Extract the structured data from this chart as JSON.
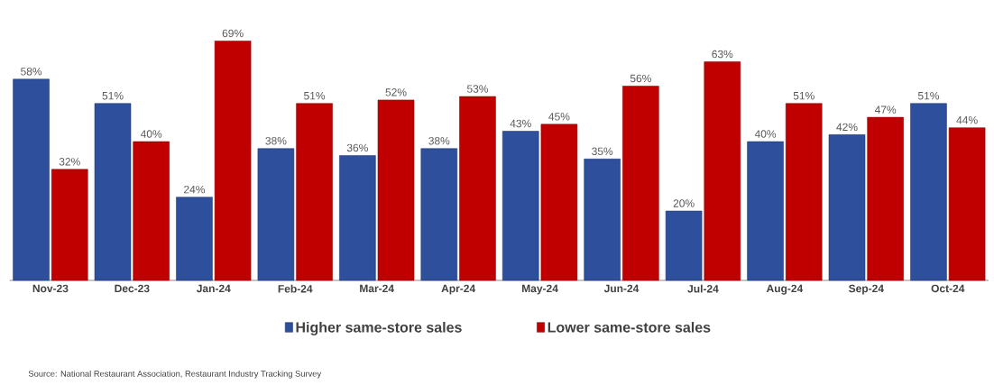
{
  "chart_data": {
    "type": "bar",
    "categories": [
      "Nov-23",
      "Dec-23",
      "Jan-24",
      "Feb-24",
      "Mar-24",
      "Apr-24",
      "May-24",
      "Jun-24",
      "Jul-24",
      "Aug-24",
      "Sep-24",
      "Oct-24"
    ],
    "series": [
      {
        "name": "Higher same-store sales",
        "color": "#2e4f9c",
        "values": [
          58,
          51,
          24,
          38,
          36,
          38,
          43,
          35,
          20,
          40,
          42,
          51
        ],
        "value_labels": [
          "58%",
          "51%",
          "24%",
          "38%",
          "36%",
          "38%",
          "43%",
          "35%",
          "20%",
          "40%",
          "42%",
          "51%"
        ]
      },
      {
        "name": "Lower same-store sales",
        "color": "#c00000",
        "values": [
          32,
          40,
          69,
          51,
          52,
          53,
          45,
          56,
          63,
          51,
          47,
          44
        ],
        "value_labels": [
          "32%",
          "40%",
          "69%",
          "51%",
          "52%",
          "53%",
          "45%",
          "56%",
          "63%",
          "51%",
          "47%",
          "44%"
        ]
      }
    ],
    "legend": "bottom",
    "annotations": [
      "Source: National Restaurant Association, Restaurant Industry Tracking Survey"
    ]
  }
}
